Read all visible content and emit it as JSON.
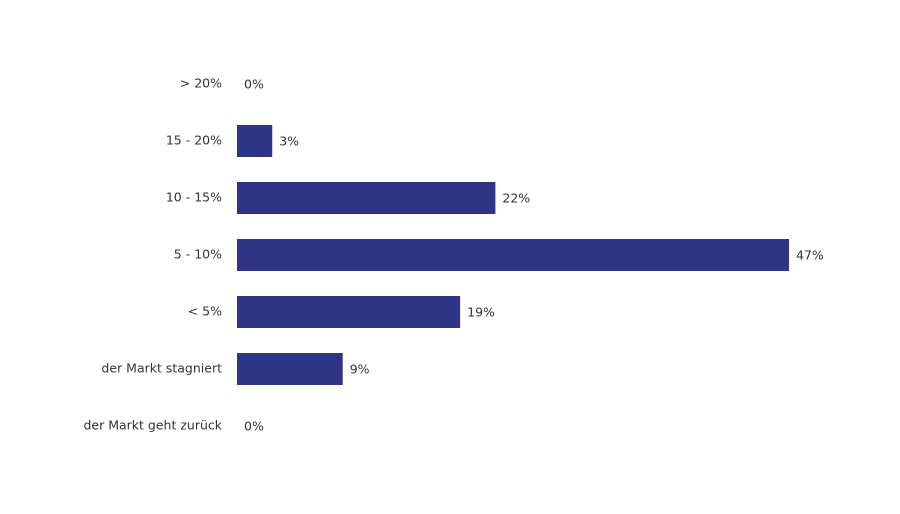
{
  "chart_data": {
    "type": "hbar",
    "categories": [
      "> 20%",
      "15 - 20%",
      "10 - 15%",
      "5 - 10%",
      "< 5%",
      "der Markt stagniert",
      "der Markt geht zurück"
    ],
    "values": [
      0,
      3,
      22,
      47,
      19,
      9,
      0
    ],
    "value_labels": [
      "0%",
      "3%",
      "22%",
      "47%",
      "19%",
      "9%",
      "0%"
    ],
    "color": "#2e3587"
  }
}
